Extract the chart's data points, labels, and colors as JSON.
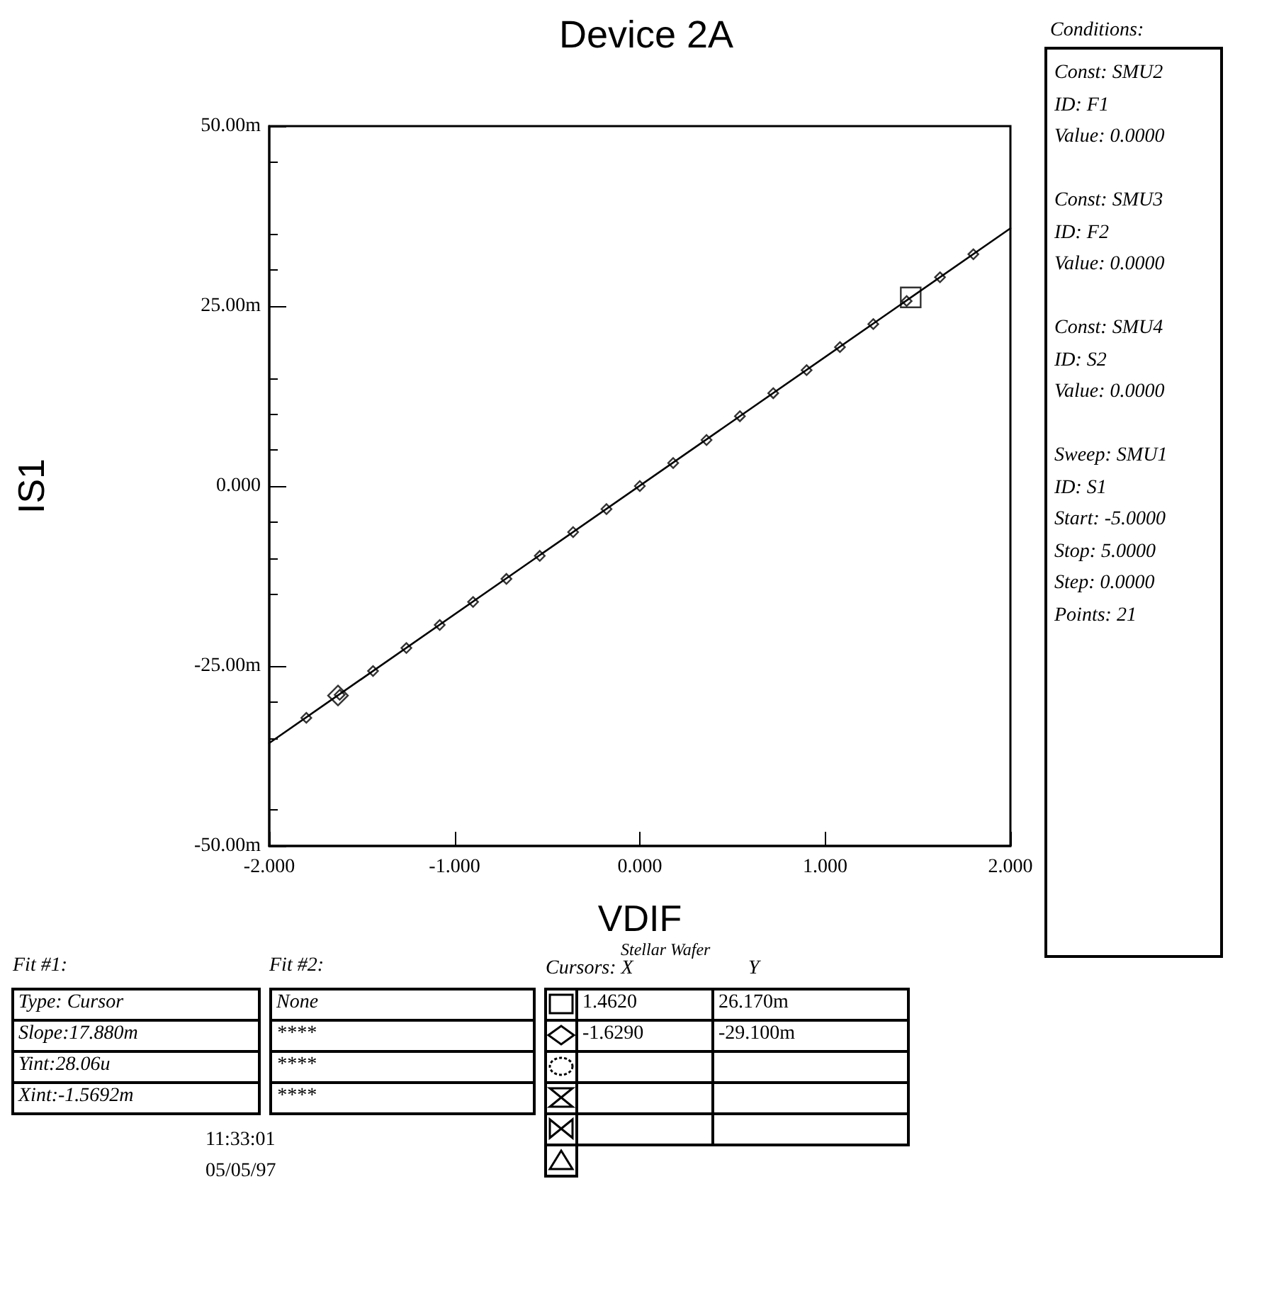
{
  "chart_data": {
    "type": "scatter",
    "title": "Device 2A",
    "xlabel": "VDIF",
    "ylabel": "IS1",
    "xlim": [
      -2,
      2
    ],
    "xticks": [
      {
        "value": -2,
        "label": "-2.000"
      },
      {
        "value": -1,
        "label": "-1.000"
      },
      {
        "value": 0,
        "label": "0.000"
      },
      {
        "value": 1,
        "label": "1.000"
      },
      {
        "value": 2,
        "label": "2.000"
      }
    ],
    "ylim": [
      -50,
      50
    ],
    "yticks": [
      {
        "value": -50,
        "label": "-50.00m"
      },
      {
        "value": -25,
        "label": "-25.00m"
      },
      {
        "value": 0,
        "label": "0.000"
      },
      {
        "value": 25,
        "label": "25.00m"
      },
      {
        "value": 50,
        "label": "50.00m"
      }
    ],
    "grid": false,
    "series": [
      {
        "marker": "diamond",
        "color": "#000000",
        "x": [
          -1.8,
          -1.62,
          -1.44,
          -1.26,
          -1.08,
          -0.9,
          -0.72,
          -0.54,
          -0.36,
          -0.18,
          0,
          0.18,
          0.36,
          0.54,
          0.72,
          0.9,
          1.08,
          1.26,
          1.44,
          1.62,
          1.8
        ],
        "values": [
          -32.2,
          -29,
          -25.7,
          -22.5,
          -19.3,
          -16.1,
          -12.9,
          -9.7,
          -6.4,
          -3.2,
          0,
          3.2,
          6.4,
          9.7,
          12.9,
          16.1,
          19.3,
          22.5,
          25.7,
          29,
          32.2
        ]
      },
      {
        "type": "line",
        "marker": "none",
        "line_style": "solid",
        "color": "#000000",
        "x": [
          -2,
          2
        ],
        "values": [
          -35.7,
          35.8
        ]
      },
      {
        "marker": "square",
        "color": "#000000",
        "x": [
          1.462
        ],
        "values": [
          26.2
        ]
      },
      {
        "marker": "diamond",
        "color": "#000000",
        "x": [
          -1.629
        ],
        "values": [
          -29.1
        ]
      }
    ],
    "annotations": [
      "Conditions:",
      "Const: SMU2\nID: F1\nValue: 0.0000\n\nConst: SMU3\nID: F2\nValue: 0.0000\n\nConst: SMU4\nID: S2\nValue: 0.0000\n\nSweep: SMU1\nID: S1\nStart: -5.0000\nStop: 5.0000\nStep: 0.0000\nPoints: 21",
      "Fit #1:",
      "Type: Cursor",
      "Slope:17.880m",
      "Yint:28.06u",
      "Xint:-1.5692m",
      "Fit #2:",
      "None",
      "****",
      "****",
      "****",
      "Stellar Wafer",
      "Cursors: X",
      "Y",
      "1.4620",
      "26.170m",
      "-1.6290",
      "-29.100m",
      "11:33:01",
      "05/05/97"
    ]
  }
}
